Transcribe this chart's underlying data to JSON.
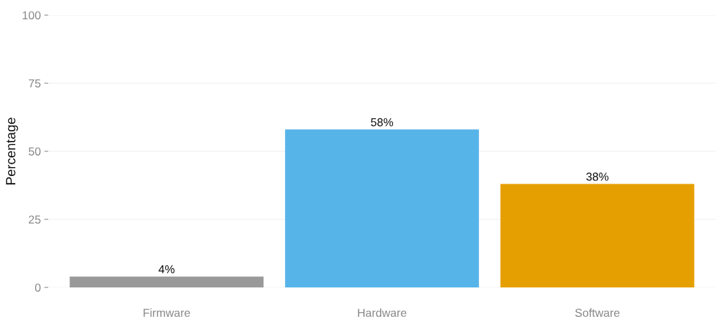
{
  "chart_data": {
    "type": "bar",
    "ylabel": "Percentage",
    "categories": [
      "Firmware",
      "Hardware",
      "Software"
    ],
    "values": [
      4,
      58,
      38
    ],
    "colors": [
      "#999999",
      "#56b4e9",
      "#e69f00"
    ],
    "value_labels": [
      "4%",
      "58%",
      "38%"
    ],
    "ylim": [
      0,
      100
    ],
    "yticks": [
      0,
      25,
      50,
      75,
      100
    ],
    "grid": "y"
  }
}
